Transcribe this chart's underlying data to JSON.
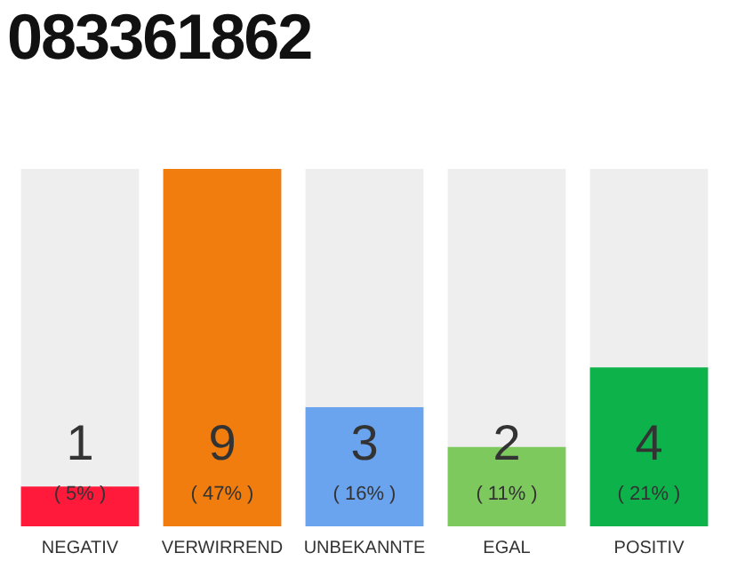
{
  "chart_data": {
    "type": "bar",
    "title": "083361862",
    "categories": [
      "NEGATIV",
      "VERWIRREND",
      "UNBEKANNTE",
      "EGAL",
      "POSITIV"
    ],
    "values": [
      1,
      9,
      3,
      2,
      4
    ],
    "colors": [
      "#ff1a3c",
      "#f07d0d",
      "#6aa3ee",
      "#7dc95e",
      "#0db34a"
    ],
    "ylim": [
      0,
      9
    ],
    "data_labels": true,
    "grid": false,
    "legend": false,
    "annotations": [
      "( 5% )",
      "( 47% )",
      "( 16% )",
      "( 11% )",
      "( 21% )"
    ]
  }
}
